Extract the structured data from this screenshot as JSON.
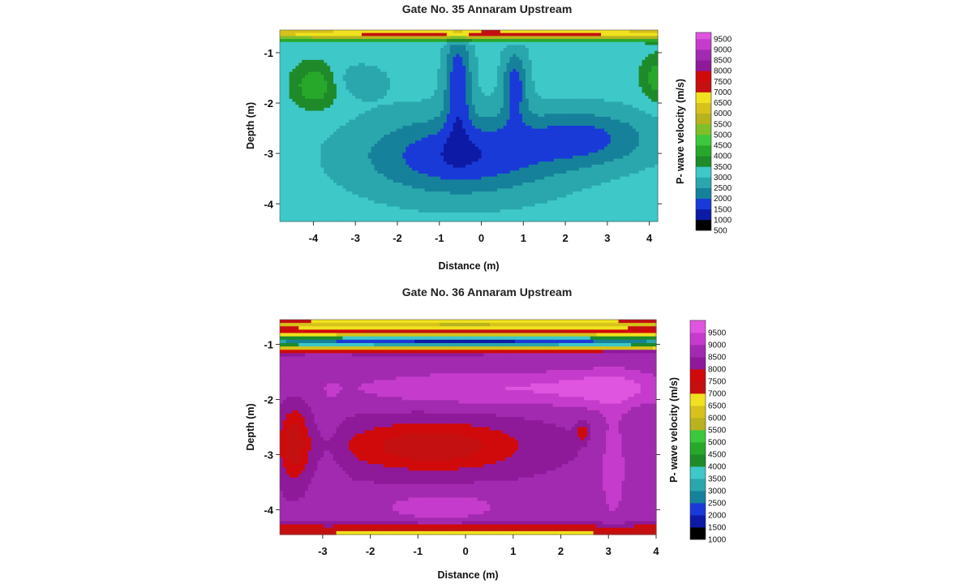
{
  "chart_data": [
    {
      "type": "heatmap",
      "title": "Gate No. 35  Annaram Upstream",
      "xlabel": "Distance (m)",
      "ylabel": "Depth (m)",
      "colorbar_label": "P- wave velocity (m/s)",
      "xlim": [
        -4.8,
        4.2
      ],
      "ylim": [
        -4.35,
        -0.55
      ],
      "x_ticks": [
        -4,
        -3,
        -2,
        -1,
        0,
        1,
        2,
        3,
        4
      ],
      "y_ticks": [
        -1,
        -2,
        -3,
        -4
      ],
      "colorbar_levels": [
        500,
        1000,
        1500,
        2000,
        2500,
        3000,
        3500,
        4000,
        4500,
        5000,
        5500,
        6000,
        6500,
        7000,
        7500,
        8000,
        8500,
        9000,
        9500
      ],
      "colorbar_colors": [
        "#000000",
        "#0d1aa6",
        "#1a3ad8",
        "#16819a",
        "#2aa7ad",
        "#3ec8c8",
        "#1e8a2a",
        "#28a82a",
        "#3cc83c",
        "#7fbf2a",
        "#b7b21e",
        "#d6c21a",
        "#f0e21e",
        "#c41010",
        "#d00a0a",
        "#8e1a9a",
        "#a22ab0",
        "#c53ccc",
        "#e055e0"
      ],
      "color_max": 9800
    },
    {
      "type": "heatmap",
      "title": "Gate No. 36  Annaram Upstream",
      "xlabel": "Distance (m)",
      "ylabel": "Depth (m)",
      "colorbar_label": "P- wave velocity (m/s)",
      "xlim": [
        -3.9,
        4.0
      ],
      "ylim": [
        -4.45,
        -0.55
      ],
      "x_ticks": [
        -3,
        -2,
        -1,
        0,
        1,
        2,
        3,
        4
      ],
      "y_ticks": [
        -1,
        -2,
        -3,
        -4
      ],
      "colorbar_levels": [
        1000,
        1500,
        2000,
        2500,
        3000,
        3500,
        4000,
        4500,
        5000,
        5500,
        6000,
        6500,
        7000,
        7500,
        8000,
        8500,
        9000,
        9500
      ],
      "colorbar_colors": [
        "#000000",
        "#0d1aa6",
        "#1a3ad8",
        "#16819a",
        "#2aa7ad",
        "#3ec8c8",
        "#1e8a2a",
        "#28a82a",
        "#3cc83c",
        "#b7b21e",
        "#d6c21a",
        "#f0e21e",
        "#c41010",
        "#d00a0a",
        "#8e1a9a",
        "#a22ab0",
        "#c53ccc",
        "#e055e0"
      ],
      "color_max": 10000
    }
  ]
}
